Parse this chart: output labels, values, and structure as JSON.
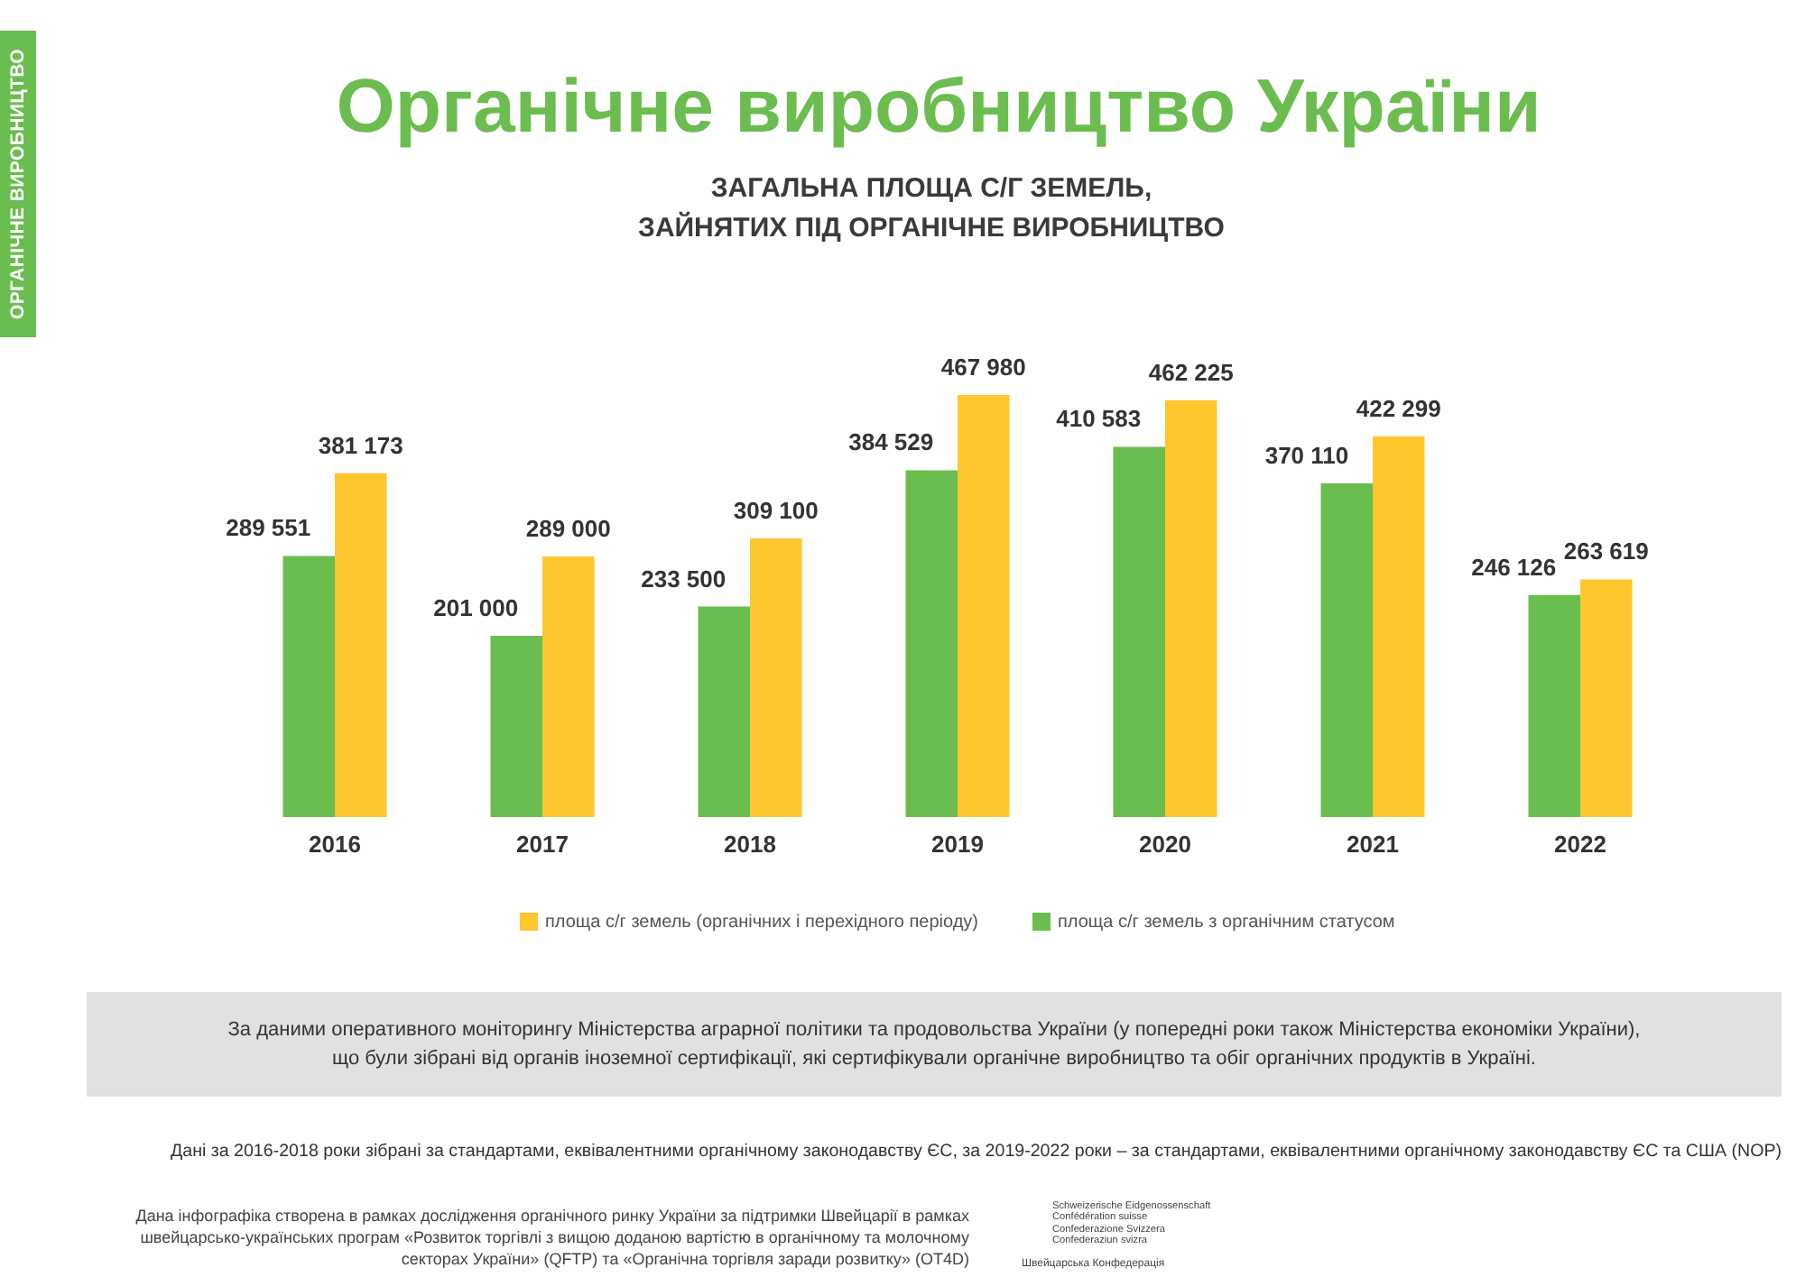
{
  "chart_data": {
    "type": "bar",
    "title": "Органічне виробництво України",
    "subtitle": "ЗАГАЛЬНА ПЛОЩА С/Г ЗЕМЕЛЬ,\nЗАЙНЯТИХ ПІД ОРГАНІЧНЕ ВИРОБНИЦТВО",
    "categories": [
      "2016",
      "2017",
      "2018",
      "2019",
      "2020",
      "2021",
      "2022"
    ],
    "series": [
      {
        "name": "площа с/г земель з органічним статусом",
        "color": "#6abd4f",
        "values": [
          289551,
          201000,
          233500,
          384529,
          410583,
          370110,
          246126
        ]
      },
      {
        "name": "площа с/г земель (органічних і перехідного періоду)",
        "color": "#ffc72e",
        "values": [
          381173,
          289000,
          309100,
          467980,
          462225,
          422299,
          263619
        ]
      }
    ],
    "data_labels": true,
    "legend": "bottom",
    "annotations": [
      "ОРГАНІЧНЕ ВИРОБНИЦТВО",
      "За даними оперативного моніторингу Міністерства аграрної політики та продовольства України (у попередні роки також Міністерства економіки України),\nщо були зібрані від органів іноземної сертифікації, які сертифікували органічне виробництво та обіг органічних продуктів в Україні.",
      "Дані за 2016-2018 роки зібрані за стандартами, еквівалентними органічному законодавству ЄС, за 2019-2022 роки – за стандартами, еквівалентними органічному законодавству ЄС та США (NOP)",
      "Дана інфографіка створена в рамках дослідження органічного ринку України за підтримки Швейцарії в рамках швейцарсько-українських програм «Розвиток торгівлі з вищою доданою вартістю в органічному та молочному секторах України» (QFTP) та «Органічна торгівля заради розвитку» (OT4D)",
      "Schweizerische Eidgenossenschaft\nConfédération suisse\nConfederazione Svizzera\nConfederaziun svizra",
      "Швейцарська Конфедерація"
    ]
  }
}
